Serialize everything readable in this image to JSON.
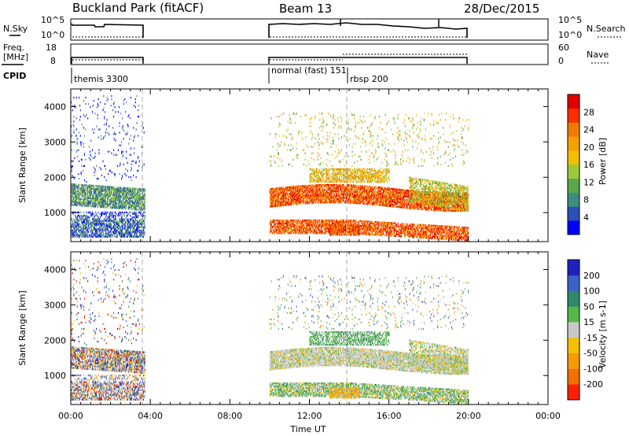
{
  "header": {
    "station": "Buckland Park (fitACF)",
    "beam": "Beam 13",
    "date": "28/Dec/2015"
  },
  "left_labels": {
    "nsky": "N.Sky",
    "freq_line1": "Freq.",
    "freq_line2": "[MHz]",
    "cpid": "CPID"
  },
  "right_labels": {
    "nsearch": "N.Search",
    "nave": "Nave"
  },
  "noise_axis": {
    "left_ticks": [
      "10^5",
      "10^0"
    ],
    "right_ticks": [
      "10^5",
      "10^0"
    ]
  },
  "freq_axis": {
    "left_ticks": [
      "18",
      "8"
    ],
    "right_ticks": [
      "60",
      "0"
    ]
  },
  "cpid_blocks": [
    {
      "label": "themis 3300",
      "start_h": 0.0
    },
    {
      "label": "normal (fast) 151",
      "start_h": 10.0
    },
    {
      "label": "rbsp 200",
      "start_h": 14.3
    }
  ],
  "x_axis": {
    "label": "Time UT",
    "ticks": [
      "00:00",
      "04:00",
      "08:00",
      "12:00",
      "16:00",
      "20:00",
      "00:00"
    ],
    "range_h": [
      0,
      24
    ]
  },
  "y_axis": {
    "label": "Slant Range [km]",
    "ticks": [
      "1000",
      "2000",
      "3000",
      "4000"
    ],
    "range_km": [
      180,
      4500
    ]
  },
  "colors": {
    "power": [
      "#0000ff",
      "#2c50b4",
      "#3f8c7f",
      "#5aa64a",
      "#9bc93a",
      "#f0c000",
      "#f5a000",
      "#ef7c00",
      "#ff3000",
      "#e00000"
    ],
    "velocity": [
      "#2020c0",
      "#3a62c8",
      "#2f8a6a",
      "#56b848",
      "#c8c8c8",
      "#f5c000",
      "#f59a00",
      "#f07000",
      "#ff2000"
    ]
  },
  "chart_data": [
    {
      "type": "heatmap",
      "ylabel": "Slant Range [km]",
      "colorbar_label": "Power [dB]",
      "colorbar_ticks": [
        "4",
        "8",
        "12",
        "16",
        "20",
        "24",
        "28"
      ],
      "colorbar_range": [
        0,
        32
      ],
      "features": [
        {
          "t": [
            0.0,
            3.7
          ],
          "km": [
            1200,
            1800
          ],
          "level": "medium-high"
        },
        {
          "t": [
            0.0,
            3.7
          ],
          "km": [
            300,
            800
          ],
          "level": "medium"
        },
        {
          "t": [
            10.0,
            20.0
          ],
          "km": [
            1150,
            1700
          ],
          "level": "high"
        },
        {
          "t": [
            10.0,
            20.0
          ],
          "km": [
            400,
            800
          ],
          "level": "high"
        },
        {
          "t": [
            12.0,
            16.0
          ],
          "km": [
            1800,
            2200
          ],
          "level": "medium-high"
        }
      ]
    },
    {
      "type": "heatmap",
      "ylabel": "Slant Range [km]",
      "colorbar_label": "Velocity [m s-1]",
      "colorbar_ticks": [
        "200",
        "100",
        "50",
        "15",
        "-15",
        "-50",
        "-100",
        "-200"
      ],
      "colorbar_range": [
        -250,
        250
      ],
      "features": [
        {
          "t": [
            0.0,
            3.7
          ],
          "km": [
            1200,
            1800
          ],
          "level": "mixed"
        },
        {
          "t": [
            10.0,
            20.0
          ],
          "km": [
            1100,
            1700
          ],
          "level": "near-zero"
        },
        {
          "t": [
            10.0,
            20.0
          ],
          "km": [
            400,
            800
          ],
          "level": "positive"
        },
        {
          "t": [
            13.0,
            14.5
          ],
          "km": [
            350,
            650
          ],
          "level": "negative"
        }
      ]
    }
  ]
}
